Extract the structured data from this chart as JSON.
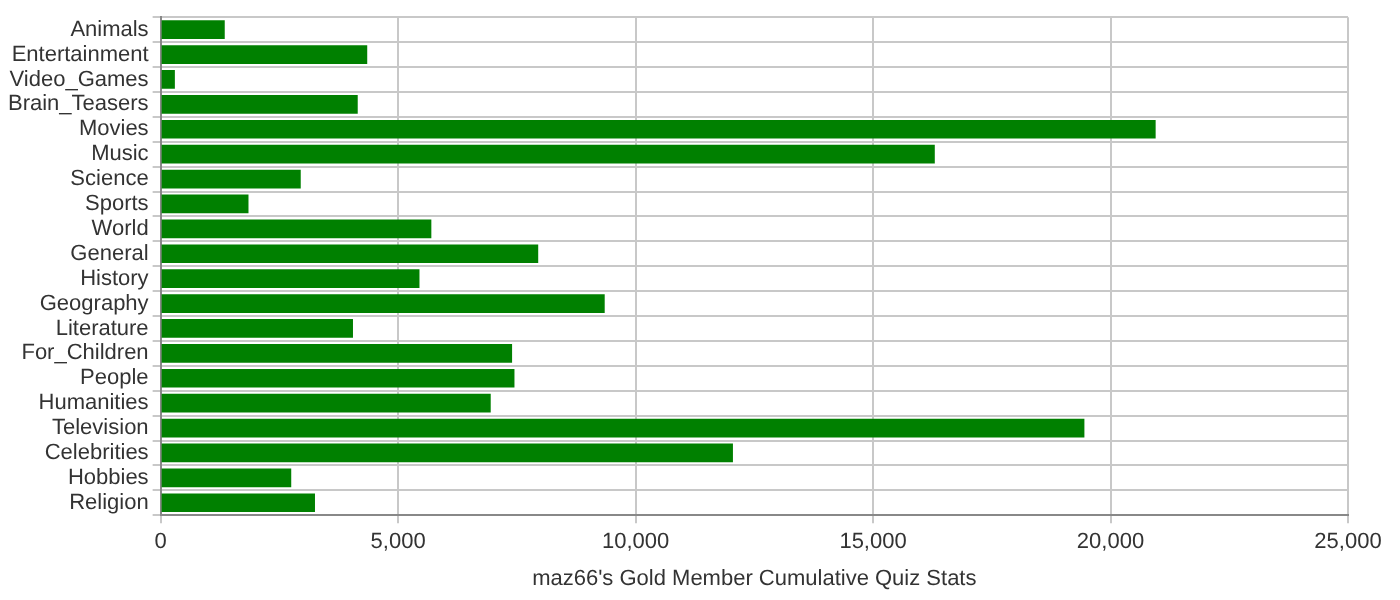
{
  "chart_data": {
    "type": "bar",
    "orientation": "horizontal",
    "xlabel": "maz66's Gold Member Cumulative Quiz Stats",
    "categories": [
      "Animals",
      "Entertainment",
      "Video_Games",
      "Brain_Teasers",
      "Movies",
      "Music",
      "Science",
      "Sports",
      "World",
      "General",
      "History",
      "Geography",
      "Literature",
      "For_Children",
      "People",
      "Humanities",
      "Television",
      "Celebrities",
      "Hobbies",
      "Religion"
    ],
    "values": [
      1350,
      4350,
      300,
      4150,
      20950,
      16300,
      2950,
      1850,
      5700,
      7950,
      5450,
      9350,
      4050,
      7400,
      7450,
      6950,
      19450,
      12050,
      2750,
      3250
    ],
    "color": "#008000",
    "xlim": [
      0,
      25000
    ],
    "xticks": [
      {
        "value": 0,
        "label": "0"
      },
      {
        "value": 5000,
        "label": "5,000"
      },
      {
        "value": 10000,
        "label": "10,000"
      },
      {
        "value": 15000,
        "label": "15,000"
      },
      {
        "value": 20000,
        "label": "20,000"
      },
      {
        "value": 25000,
        "label": "25,000"
      }
    ],
    "grid": true
  }
}
